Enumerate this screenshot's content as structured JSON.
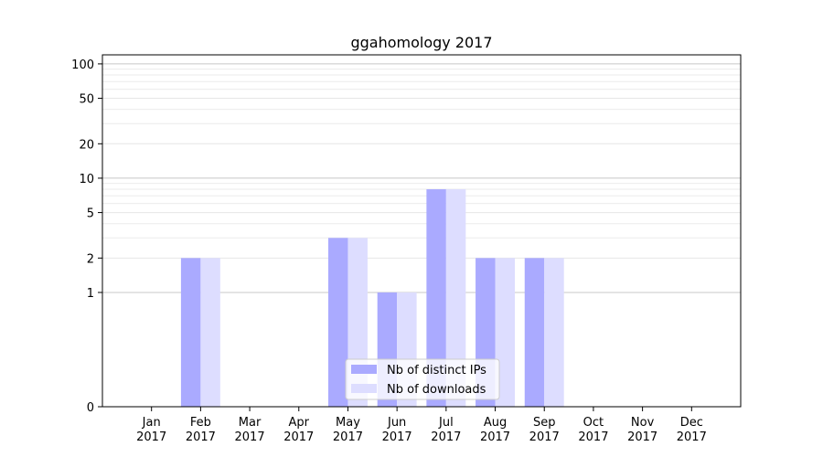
{
  "chart_data": {
    "type": "bar",
    "title": "ggahomology 2017",
    "xlabel": "",
    "ylabel": "",
    "yscale": "symlog",
    "ylim": [
      0,
      120
    ],
    "y_ticks": [
      0,
      1,
      2,
      5,
      10,
      20,
      50,
      100
    ],
    "y_tick_labels": [
      "0",
      "1",
      "2",
      "5",
      "10",
      "20",
      "50",
      "100"
    ],
    "categories": [
      {
        "month": "Jan",
        "year": "2017"
      },
      {
        "month": "Feb",
        "year": "2017"
      },
      {
        "month": "Mar",
        "year": "2017"
      },
      {
        "month": "Apr",
        "year": "2017"
      },
      {
        "month": "May",
        "year": "2017"
      },
      {
        "month": "Jun",
        "year": "2017"
      },
      {
        "month": "Jul",
        "year": "2017"
      },
      {
        "month": "Aug",
        "year": "2017"
      },
      {
        "month": "Sep",
        "year": "2017"
      },
      {
        "month": "Oct",
        "year": "2017"
      },
      {
        "month": "Nov",
        "year": "2017"
      },
      {
        "month": "Dec",
        "year": "2017"
      }
    ],
    "series": [
      {
        "name": "Nb of distinct IPs",
        "color": "#aaaaff",
        "values": [
          0,
          2,
          0,
          0,
          3,
          1,
          8,
          2,
          2,
          0,
          0,
          0
        ]
      },
      {
        "name": "Nb of downloads",
        "color": "#ddddff",
        "values": [
          0,
          2,
          0,
          0,
          3,
          1,
          8,
          2,
          2,
          0,
          0,
          0
        ]
      }
    ],
    "grid": true,
    "legend_position": "lower-center"
  }
}
